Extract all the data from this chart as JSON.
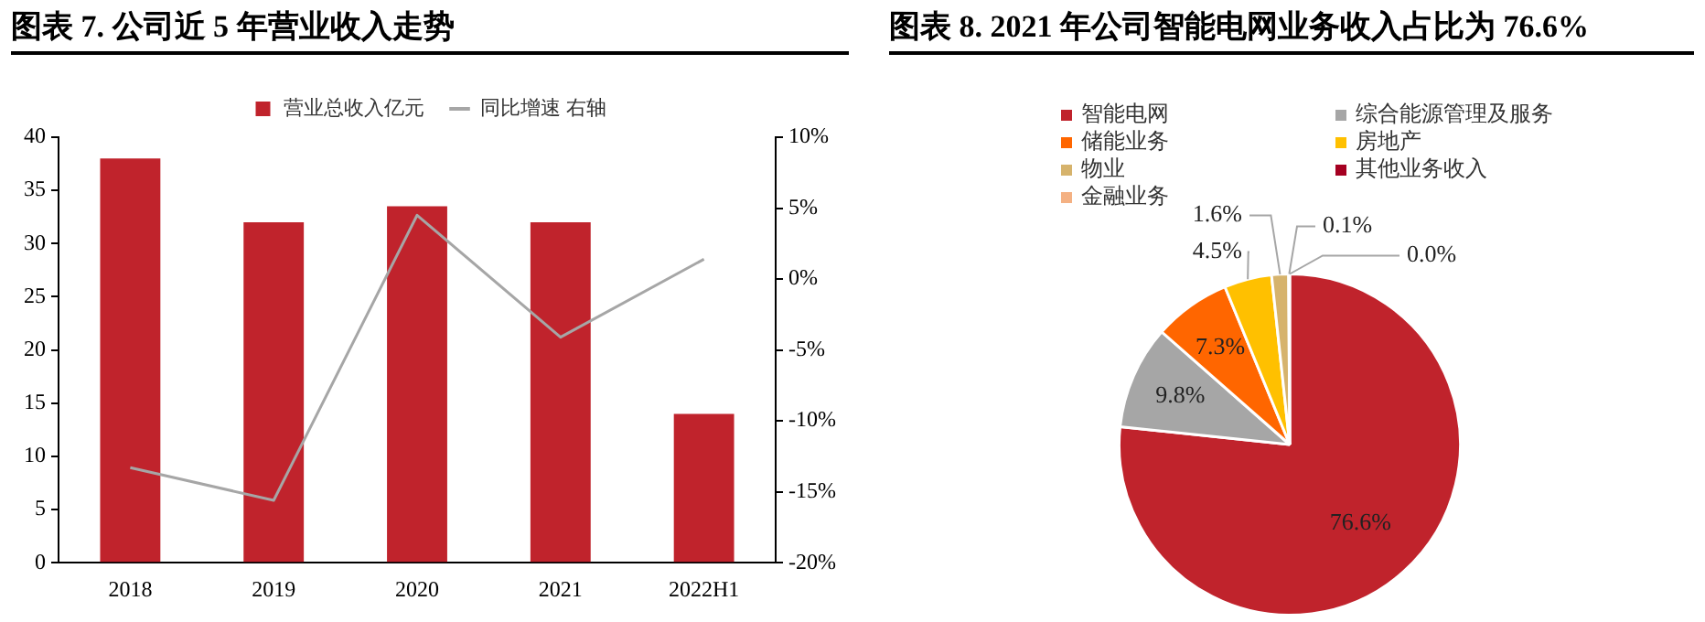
{
  "chart_data": [
    {
      "type": "bar",
      "title": "图表 7.  公司近 5 年营业收入走势",
      "categories": [
        "2018",
        "2019",
        "2020",
        "2021",
        "2022H1"
      ],
      "series": [
        {
          "name": "营业总收入亿元",
          "type": "bar",
          "color": "#c0232c",
          "values": [
            38,
            32,
            33.5,
            32,
            14
          ]
        },
        {
          "name": "同比增速 右轴",
          "type": "line",
          "axis": "y2",
          "color": "#a6a6a6",
          "values": [
            -13.3,
            -15.6,
            4.5,
            -4.1,
            1.4
          ]
        }
      ],
      "ylim": [
        0,
        40
      ],
      "yticks": [
        0,
        5,
        10,
        15,
        20,
        25,
        30,
        35,
        40
      ],
      "y2lim": [
        -20,
        10
      ],
      "y2ticks": [
        {
          "value": -20,
          "label": "-20%"
        },
        {
          "value": -15,
          "label": "-15%"
        },
        {
          "value": -10,
          "label": "-10%"
        },
        {
          "value": -5,
          "label": "-5%"
        },
        {
          "value": 0,
          "label": "0%"
        },
        {
          "value": 5,
          "label": "5%"
        },
        {
          "value": 10,
          "label": "10%"
        }
      ],
      "grid": false,
      "legend": "top",
      "marker": "none"
    },
    {
      "type": "pie",
      "title": "图表 8.  2021 年公司智能电网业务收入占比为 76.6%",
      "categories": [
        "智能电网",
        "综合能源管理及服务",
        "储能业务",
        "房地产",
        "物业",
        "其他业务收入",
        "金融业务"
      ],
      "values": [
        76.6,
        9.8,
        7.3,
        4.5,
        1.6,
        0.1,
        0.0
      ],
      "colors": [
        "#c0232c",
        "#a6a6a6",
        "#ff6600",
        "#ffc000",
        "#d6b36c",
        "#a50021",
        "#f4b183"
      ],
      "value_labels": [
        "76.6%",
        "9.8%",
        "7.3%",
        "4.5%",
        "1.6%",
        "0.1%",
        "0.0%"
      ],
      "legend": "top left"
    }
  ]
}
